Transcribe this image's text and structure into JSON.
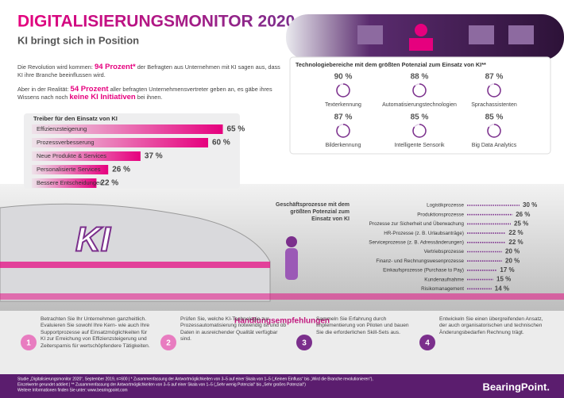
{
  "header": {
    "title": "DIGITALISIERUNGSMONITOR 2020",
    "subtitle": "KI bringt sich in Position"
  },
  "intro": [
    [
      {
        "text": "Die Revolution wird kommen: ",
        "em": false
      },
      {
        "text": "94 Prozent*",
        "em": true
      },
      {
        "text": " der Befragten aus Unternehmen mit KI sagen aus, dass KI ihre Branche beeinflussen wird.",
        "em": false
      }
    ],
    [
      {
        "text": "Aber in der Realität: ",
        "em": false
      },
      {
        "text": "54 Prozent",
        "em": true
      },
      {
        "text": " aller befragten Unternehmensvertreter geben an, es gäbe ihres Wissens nach noch ",
        "em": false
      },
      {
        "text": "keine KI Initiativen",
        "em": true
      },
      {
        "text": " bei ihnen.",
        "em": false
      }
    ]
  ],
  "train_label": "KI",
  "chart_data": [
    {
      "type": "bar",
      "orientation": "horizontal",
      "title": "Treiber für den Einsatz von KI",
      "categories": [
        "Effizienzsteigerung",
        "Prozessverbesserung",
        "Neue Produkte & Services",
        "Personalisierte Services",
        "Bessere Entscheidungen"
      ],
      "values": [
        65,
        60,
        37,
        26,
        22
      ],
      "value_labels": [
        "65 %",
        "60 %",
        "37 %",
        "26 %",
        "22 %"
      ],
      "color": "#e6007e",
      "xlim": [
        0,
        70
      ]
    },
    {
      "type": "stat-grid",
      "title": "Technologiebereiche mit dem größten Potenzial zum Einsatz von KI**",
      "categories": [
        "Texterkennung",
        "Automatisierungstechnologien",
        "Sprachassistenten",
        "Bilderkennung",
        "Intelligente Sensorik",
        "Big Data Analytics"
      ],
      "values": [
        90,
        88,
        87,
        87,
        85,
        85
      ],
      "value_labels": [
        "90 %",
        "88 %",
        "87 %",
        "87 %",
        "85 %",
        "85 %"
      ],
      "color": "#7b2f8c"
    },
    {
      "type": "bar",
      "orientation": "horizontal",
      "title": "Geschäftsprozesse mit dem größten Potenzial zum Einsatz von KI",
      "categories": [
        "Logistikprozesse",
        "Produktionsprozesse",
        "Prozesse zur Sicherheit und Überwachung",
        "HR-Prozesse (z. B. Urlaubsanträge)",
        "Serviceprozesse (z. B. Adressänderungen)",
        "Vertriebsprozesse",
        "Finanz- und Rechnungswesenprozesse",
        "Einkaufsprozesse (Purchase to Pay)",
        "Kundenaufnahme",
        "Risikomanagement"
      ],
      "values": [
        30,
        26,
        25,
        22,
        22,
        20,
        20,
        17,
        15,
        14
      ],
      "value_labels": [
        "30 %",
        "26 %",
        "25 %",
        "22 %",
        "22 %",
        "20 %",
        "20 %",
        "17 %",
        "15 %",
        "14 %"
      ],
      "color": "#7b2f8c",
      "xlim": [
        0,
        40
      ]
    }
  ],
  "recommendations": {
    "title": "Handlungsempfehlungen",
    "items": [
      {
        "number": "1",
        "text": "Betrachten Sie Ihr Unternehmen ganzheitlich. Evaluieren Sie sowohl Ihre Kern- wie auch Ihre Supportprozesse auf Einsatzmöglichkeiten für KI zur Erreichung von Effizienzsteigerung und Zeitersparnis für wertschöpfendere Tätigkeiten."
      },
      {
        "number": "2",
        "text": "Prüfen Sie, welche KI-Technologie zur Prozessautomatisierung notwendig ist und ob Daten in ausreichender Qualität verfügbar sind."
      },
      {
        "number": "3",
        "text": "Sammeln Sie Erfahrung durch Implementierung von Piloten und bauen Sie die erforderlichen Skill-Sets aus."
      },
      {
        "number": "4",
        "text": "Entwickeln Sie einen übergreifenden Ansatz, der auch organisatorischen und technischen Änderungsbedarfen Rechnung trägt."
      }
    ]
  },
  "footer": {
    "notes": [
      "Studie „Digitalisierungsmonitor 2020“, September 2019, n=600 | * Zusammenfassung der Antwortmöglichkeiten von 3–5 auf einer Skala von 1–5 („Keinen Einfluss“ bis „Wird die Branche revolutionieren“),",
      "Einzelwerte gerundet addiert | ** Zusammenfassung der Antwortmöglichkeiten von 3–5 auf einer Skala von 1–5 („Sehr wenig Potenzial“ bis „Sehr großes Potenzial“)",
      "Weitere Informationen finden Sie unter: www.bearingpoint.com"
    ],
    "brand": "BearingPoint."
  }
}
